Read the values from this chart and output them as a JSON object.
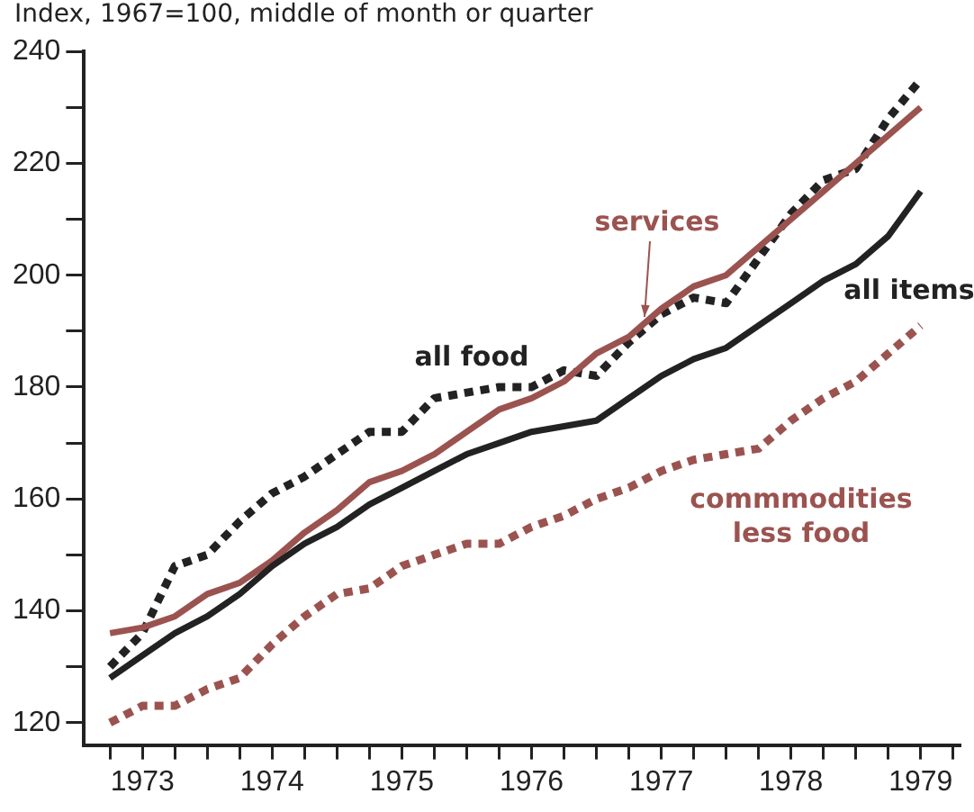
{
  "chart_data": {
    "type": "line",
    "title": "Index, 1967=100, middle of month or quarter",
    "x": [
      1973.25,
      1973.5,
      1973.75,
      1974,
      1974.25,
      1974.5,
      1974.75,
      1975,
      1975.25,
      1975.5,
      1975.75,
      1976,
      1976.25,
      1976.5,
      1976.75,
      1977,
      1977.25,
      1977.5,
      1977.75,
      1978,
      1978.25,
      1978.5,
      1978.75,
      1979,
      1979.25,
      1979.5
    ],
    "series": [
      {
        "name": "all items",
        "color": "#222222",
        "line_style": "solid",
        "values": [
          128,
          132,
          136,
          139,
          143,
          148,
          152,
          155,
          159,
          162,
          165,
          168,
          170,
          172,
          173,
          174,
          178,
          182,
          185,
          187,
          191,
          195,
          199,
          202,
          207,
          215
        ]
      },
      {
        "name": "services",
        "color": "#9b5350",
        "line_style": "solid",
        "values": [
          136,
          137,
          139,
          143,
          145,
          149,
          154,
          158,
          163,
          165,
          168,
          172,
          176,
          178,
          181,
          186,
          189,
          194,
          198,
          200,
          205,
          210,
          215,
          220,
          225,
          230
        ]
      },
      {
        "name": "all food",
        "color": "#222222",
        "line_style": "dotted",
        "values": [
          130,
          136,
          148,
          150,
          156,
          161,
          164,
          168,
          172,
          172,
          178,
          179,
          180,
          180,
          183,
          182,
          188,
          193,
          196,
          195,
          203,
          211,
          217,
          219,
          228,
          235
        ]
      },
      {
        "name": "commmodities less food",
        "color": "#9b5350",
        "line_style": "dotted",
        "values": [
          120,
          123,
          123,
          126,
          128,
          134,
          139,
          143,
          144,
          148,
          150,
          152,
          152,
          155,
          157,
          160,
          162,
          165,
          167,
          168,
          169,
          174,
          178,
          181,
          186,
          191
        ]
      }
    ],
    "xlim": [
      1973.05,
      1979.8
    ],
    "xticks": [
      {
        "value": 1973.25,
        "label": null
      },
      {
        "value": 1973.5,
        "label": "1973"
      },
      {
        "value": 1973.75,
        "label": null
      },
      {
        "value": 1974,
        "label": null
      },
      {
        "value": 1974.25,
        "label": null
      },
      {
        "value": 1974.5,
        "label": "1974"
      },
      {
        "value": 1974.75,
        "label": null
      },
      {
        "value": 1975,
        "label": null
      },
      {
        "value": 1975.25,
        "label": null
      },
      {
        "value": 1975.5,
        "label": "1975"
      },
      {
        "value": 1975.75,
        "label": null
      },
      {
        "value": 1976,
        "label": null
      },
      {
        "value": 1976.25,
        "label": null
      },
      {
        "value": 1976.5,
        "label": "1976"
      },
      {
        "value": 1976.75,
        "label": null
      },
      {
        "value": 1977,
        "label": null
      },
      {
        "value": 1977.25,
        "label": null
      },
      {
        "value": 1977.5,
        "label": "1977"
      },
      {
        "value": 1977.75,
        "label": null
      },
      {
        "value": 1978,
        "label": null
      },
      {
        "value": 1978.25,
        "label": null
      },
      {
        "value": 1978.5,
        "label": "1978"
      },
      {
        "value": 1978.75,
        "label": null
      },
      {
        "value": 1979,
        "label": null
      },
      {
        "value": 1979.25,
        "label": null
      },
      {
        "value": 1979.5,
        "label": "1979"
      },
      {
        "value": 1979.75,
        "label": null
      }
    ],
    "ylim": [
      116,
      240
    ],
    "yticks": [
      120,
      {
        "value": 130,
        "label": null
      },
      140,
      {
        "value": 150,
        "label": null
      },
      160,
      {
        "value": 170,
        "label": null
      },
      180,
      {
        "value": 190,
        "label": null
      },
      200,
      {
        "value": 210,
        "label": null
      },
      220,
      {
        "value": 230,
        "label": null
      },
      240
    ],
    "grid": false,
    "legend": false,
    "marker": "none"
  }
}
